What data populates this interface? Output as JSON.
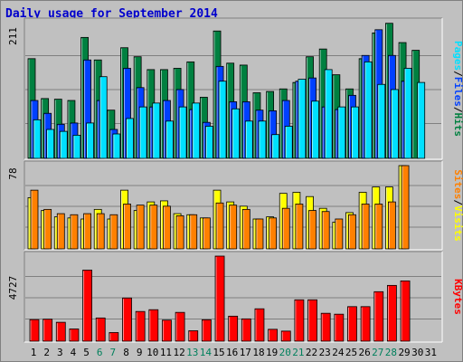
{
  "title": "Daily usage for September 2014",
  "colors": {
    "hits": "#008040",
    "files": "#0040FF",
    "pages": "#00E0FF",
    "visits": "#FFFF00",
    "sites": "#FF8000",
    "kbytes": "#FF0000",
    "weekend_label": "#00805C",
    "plot_bg": "#C0C0C0",
    "title": "#0000CC"
  },
  "chart_data": [
    {
      "type": "bar",
      "title": "Daily usage for September 2014",
      "x": [
        "1",
        "2",
        "3",
        "4",
        "5",
        "6",
        "7",
        "8",
        "9",
        "10",
        "11",
        "12",
        "13",
        "14",
        "15",
        "16",
        "17",
        "18",
        "19",
        "20",
        "21",
        "22",
        "23",
        "24",
        "25",
        "26",
        "27",
        "28",
        "29",
        "30",
        "31"
      ],
      "weekend_days": [
        "6",
        "7",
        "13",
        "14",
        "20",
        "21",
        "27",
        "28"
      ],
      "ymax_label": "211",
      "ylim": [
        0,
        211
      ],
      "legend": [
        "Pages",
        "/",
        "Files",
        "/",
        "Hits"
      ],
      "series": [
        {
          "name": "Hits",
          "values": [
            155,
            93,
            92,
            90,
            188,
            153,
            75,
            172,
            158,
            138,
            138,
            140,
            150,
            95,
            198,
            148,
            145,
            102,
            104,
            108,
            118,
            158,
            170,
            130,
            108,
            155,
            195,
            210,
            180,
            168,
            0
          ]
        },
        {
          "name": "Files",
          "values": [
            90,
            70,
            53,
            55,
            153,
            90,
            45,
            140,
            110,
            80,
            90,
            107,
            76,
            56,
            143,
            88,
            88,
            75,
            74,
            90,
            120,
            125,
            80,
            76,
            98,
            160,
            200,
            160,
            120,
            0,
            0
          ]
        },
        {
          "name": "Pages",
          "values": [
            60,
            45,
            42,
            36,
            55,
            127,
            38,
            62,
            80,
            86,
            58,
            80,
            86,
            50,
            120,
            77,
            58,
            58,
            37,
            50,
            123,
            89,
            138,
            80,
            80,
            150,
            115,
            107,
            140,
            118,
            0
          ]
        }
      ]
    },
    {
      "type": "bar",
      "ymax_label": "78",
      "ylim": [
        0,
        78
      ],
      "legend": [
        "Sites",
        "/",
        "Visits"
      ],
      "series": [
        {
          "name": "Visits",
          "values": [
            48,
            36,
            30,
            29,
            28,
            37,
            28,
            55,
            36,
            44,
            45,
            33,
            32,
            29,
            55,
            44,
            40,
            28,
            30,
            52,
            53,
            49,
            38,
            25,
            34,
            53,
            58,
            58,
            78,
            0,
            0
          ]
        },
        {
          "name": "Sites",
          "values": [
            55,
            37,
            33,
            32,
            33,
            33,
            32,
            42,
            41,
            41,
            40,
            31,
            32,
            29,
            43,
            41,
            37,
            28,
            29,
            38,
            42,
            36,
            35,
            28,
            32,
            42,
            42,
            44,
            78,
            0,
            0
          ]
        }
      ]
    },
    {
      "type": "bar",
      "ymax_label": "4727",
      "ylim": [
        0,
        4727
      ],
      "legend": [
        "KBytes"
      ],
      "series": [
        {
          "name": "KBytes",
          "values": [
            1200,
            1220,
            1050,
            680,
            3950,
            1290,
            480,
            2400,
            1650,
            1750,
            1170,
            1600,
            580,
            1190,
            4727,
            1390,
            1240,
            1800,
            660,
            560,
            2300,
            2300,
            1550,
            1500,
            1920,
            1920,
            2750,
            3100,
            3350,
            0,
            0
          ]
        }
      ]
    }
  ]
}
